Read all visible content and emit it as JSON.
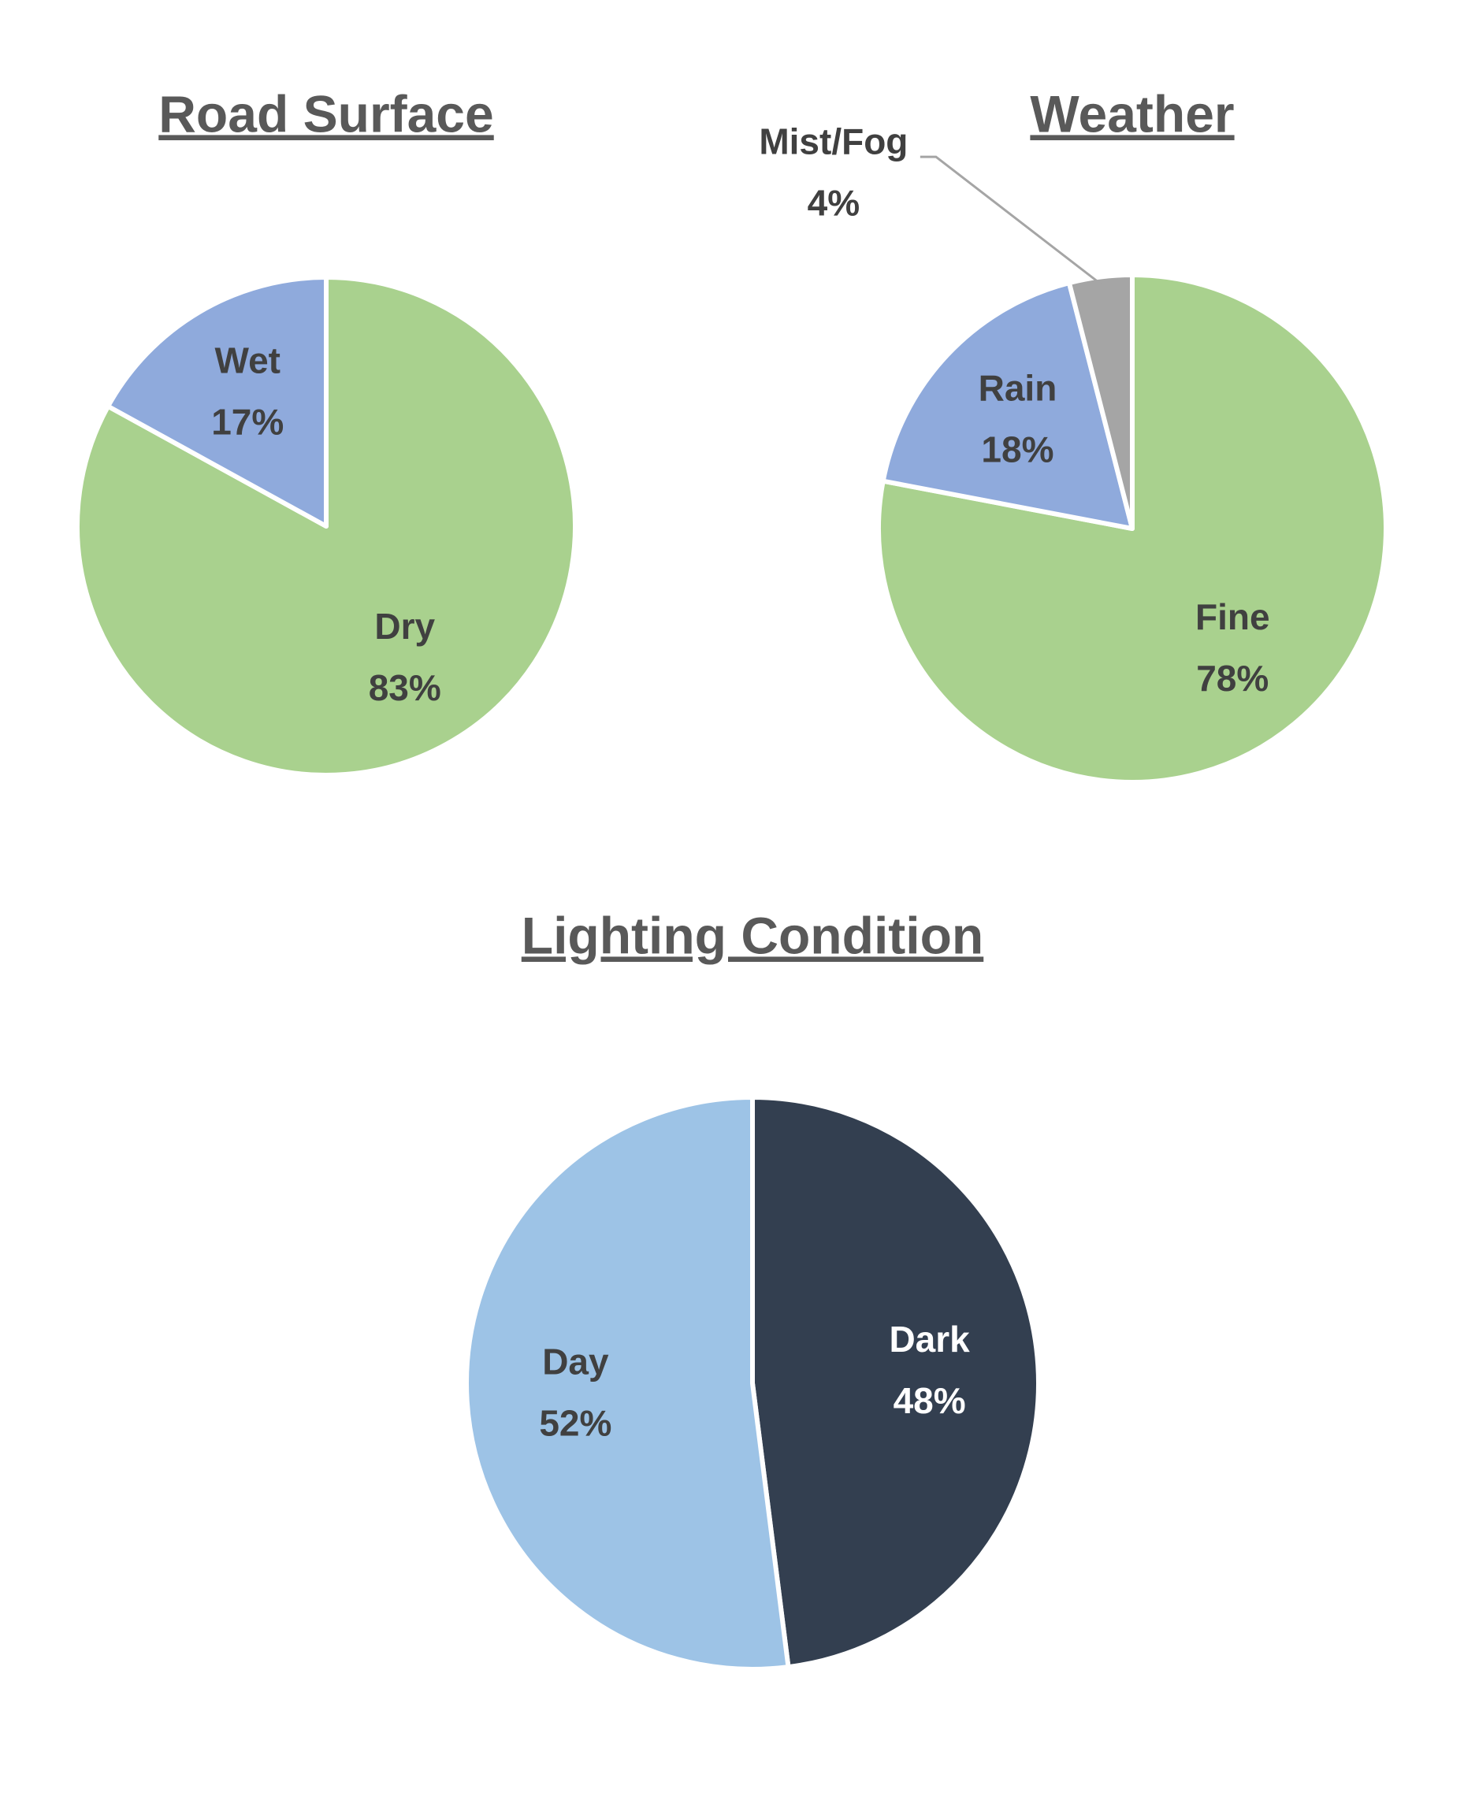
{
  "chart_data": [
    {
      "type": "pie",
      "title": "Road Surface",
      "categories": [
        "Dry",
        "Wet"
      ],
      "values": [
        83,
        17
      ],
      "value_labels": [
        "83%",
        "17%"
      ],
      "colors": [
        "#a9d18e",
        "#8faadc"
      ]
    },
    {
      "type": "pie",
      "title": "Weather",
      "categories": [
        "Fine",
        "Rain",
        "Mist/Fog"
      ],
      "values": [
        78,
        18,
        4
      ],
      "value_labels": [
        "78%",
        "18%",
        "4%"
      ],
      "colors": [
        "#a9d18e",
        "#8faadc",
        "#a5a5a5"
      ]
    },
    {
      "type": "pie",
      "title": "Lighting Condition",
      "categories": [
        "Dark",
        "Day"
      ],
      "values": [
        48,
        52
      ],
      "value_labels": [
        "48%",
        "52%"
      ],
      "colors": [
        "#333f50",
        "#9dc3e6"
      ]
    }
  ]
}
